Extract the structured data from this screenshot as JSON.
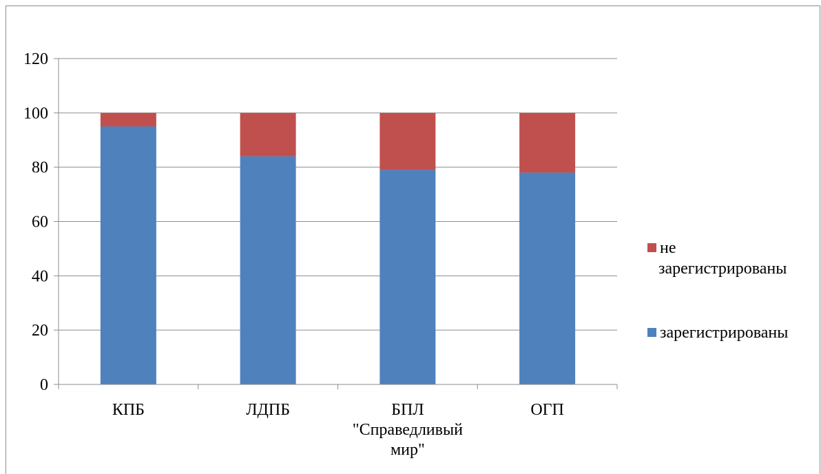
{
  "chart_data": {
    "type": "bar",
    "stacked": true,
    "categories": [
      [
        "КПБ"
      ],
      [
        "ЛДПБ"
      ],
      [
        "БПЛ",
        "\"Справедливый",
        "мир\""
      ],
      [
        "ОГП"
      ]
    ],
    "series": [
      {
        "name": "зарегистрированы",
        "color": "#4f81bd",
        "values": [
          95,
          84,
          79,
          78
        ]
      },
      {
        "name": "не зарегистрированы",
        "legend_lines": [
          "не",
          "зарегистрированы"
        ],
        "color": "#c0504d",
        "values": [
          5,
          16,
          21,
          22
        ]
      }
    ],
    "ylim": [
      0,
      120
    ],
    "yticks": [
      "0",
      "20",
      "40",
      "60",
      "80",
      "100",
      "120"
    ],
    "grid": true,
    "legend_position": "right",
    "title": "",
    "xlabel": "",
    "ylabel": ""
  }
}
